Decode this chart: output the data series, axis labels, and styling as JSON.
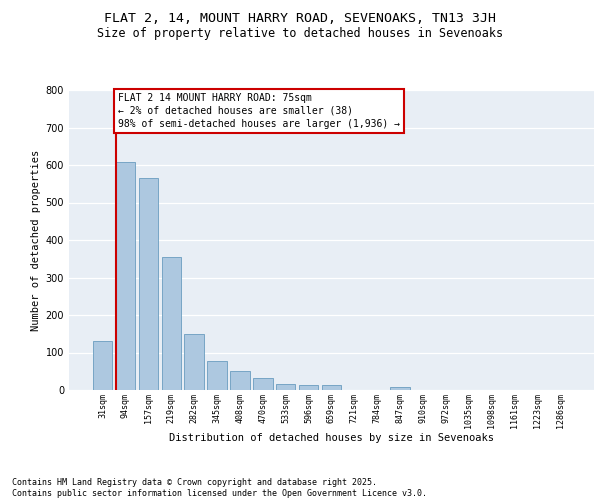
{
  "title1": "FLAT 2, 14, MOUNT HARRY ROAD, SEVENOAKS, TN13 3JH",
  "title2": "Size of property relative to detached houses in Sevenoaks",
  "xlabel": "Distribution of detached houses by size in Sevenoaks",
  "ylabel": "Number of detached properties",
  "categories": [
    "31sqm",
    "94sqm",
    "157sqm",
    "219sqm",
    "282sqm",
    "345sqm",
    "408sqm",
    "470sqm",
    "533sqm",
    "596sqm",
    "659sqm",
    "721sqm",
    "784sqm",
    "847sqm",
    "910sqm",
    "972sqm",
    "1035sqm",
    "1098sqm",
    "1161sqm",
    "1223sqm",
    "1286sqm"
  ],
  "values": [
    130,
    608,
    565,
    355,
    150,
    78,
    52,
    32,
    15,
    13,
    13,
    0,
    0,
    7,
    0,
    0,
    0,
    0,
    0,
    0,
    0
  ],
  "bar_color": "#adc8e0",
  "bar_edge_color": "#6a9dbf",
  "annotation_text": "FLAT 2 14 MOUNT HARRY ROAD: 75sqm\n← 2% of detached houses are smaller (38)\n98% of semi-detached houses are larger (1,936) →",
  "annotation_box_color": "#ffffff",
  "annotation_box_edge_color": "#cc0000",
  "vline_color": "#cc0000",
  "vline_x": 0.6,
  "ylim": [
    0,
    800
  ],
  "yticks": [
    0,
    100,
    200,
    300,
    400,
    500,
    600,
    700,
    800
  ],
  "bg_color": "#e8eef5",
  "footer_text": "Contains HM Land Registry data © Crown copyright and database right 2025.\nContains public sector information licensed under the Open Government Licence v3.0.",
  "title_fontsize": 9.5,
  "subtitle_fontsize": 8.5,
  "annotation_fontsize": 7,
  "footer_fontsize": 6,
  "ylabel_fontsize": 7.5,
  "xlabel_fontsize": 7.5,
  "ytick_fontsize": 7,
  "xtick_fontsize": 6
}
